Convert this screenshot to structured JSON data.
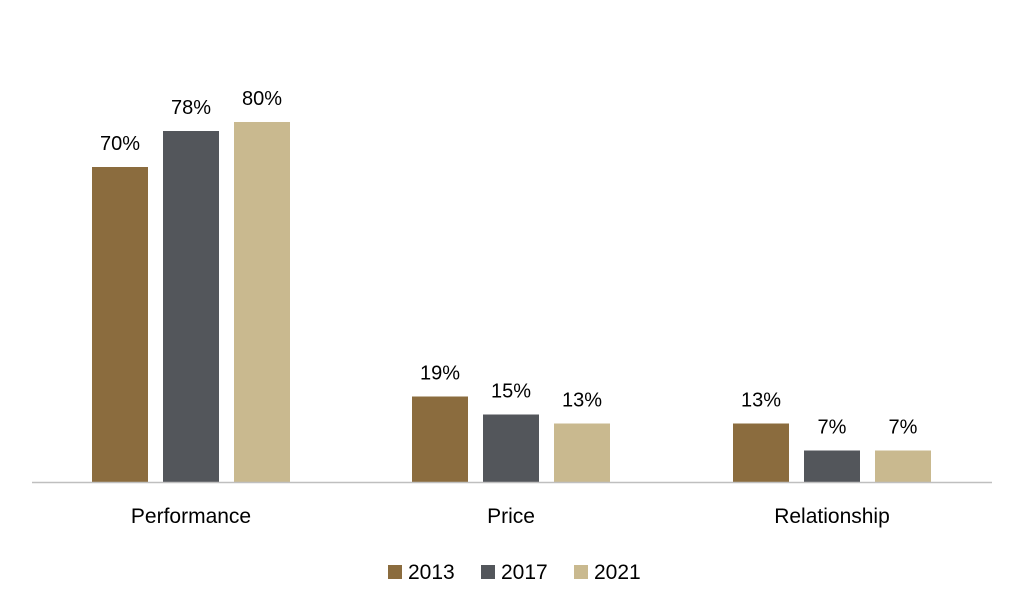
{
  "chart_data": {
    "type": "bar",
    "title": "",
    "xlabel": "",
    "ylabel": "",
    "categories": [
      "Performance",
      "Price",
      "Relationship"
    ],
    "series": [
      {
        "name": "2013",
        "values": [
          70,
          19,
          13
        ],
        "labels": [
          "70%",
          "19%",
          "13%"
        ],
        "color": "#8B6C3E"
      },
      {
        "name": "2017",
        "values": [
          78,
          15,
          7
        ],
        "labels": [
          "78%",
          "15%",
          "7%"
        ],
        "color": "#53565B"
      },
      {
        "name": "2021",
        "values": [
          80,
          13,
          7
        ],
        "labels": [
          "80%",
          "13%",
          "7%"
        ],
        "color": "#C9B98F"
      }
    ],
    "ylim": [
      0,
      100
    ],
    "grid": false,
    "legend_position": "bottom",
    "axis_color": "#BFBFBF"
  }
}
